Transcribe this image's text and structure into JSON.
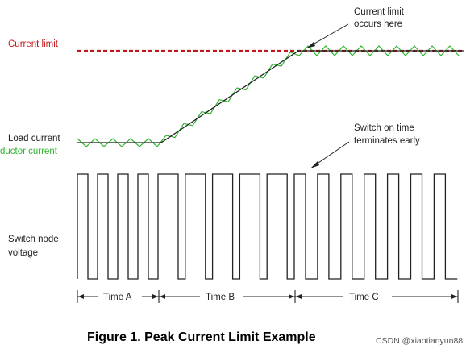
{
  "labels": {
    "current_limit": "Current limit",
    "current_limit_note_line1": "Current limit",
    "current_limit_note_line2": "occurs here",
    "load_current": "Load current",
    "inductor_current": "ductor current",
    "switch_note_line1": "Switch on time",
    "switch_note_line2": "terminates early",
    "switch_node_line1": "Switch node",
    "switch_node_line2": "voltage",
    "time_a": "Time A",
    "time_b": "Time B",
    "time_c": "Time C"
  },
  "caption": "Figure 1. Peak Current Limit Example",
  "watermark": "CSDN @xiaotianyun88",
  "colors": {
    "limit_line": "#c0161b",
    "inductor_ripple": "#2fb52f",
    "load_current": "#222222",
    "switch_wave": "#222222"
  },
  "waveform": {
    "pulses_time_a": 4,
    "pulses_time_b": 5,
    "pulses_time_c": 7,
    "on_time_terminated_in_time_c": true
  }
}
